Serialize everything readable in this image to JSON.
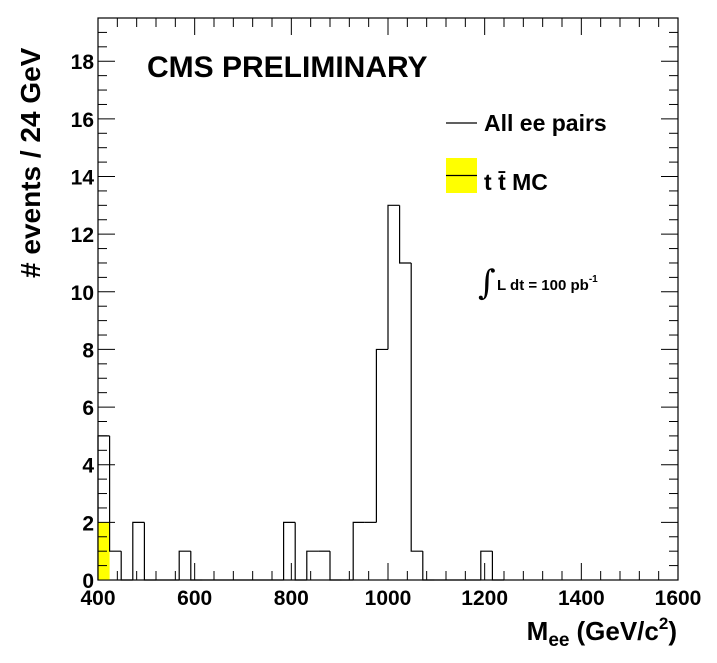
{
  "chart_data": {
    "type": "bar",
    "title": "CMS PRELIMINARY",
    "ylabel": "# events / 24 GeV",
    "xlabel_main": "M",
    "xlabel_sub": "ee",
    "xlabel_unit": "(GeV/c",
    "xlabel_unit_sup": "2",
    "xlabel_unit_close": ")",
    "xlim": [
      400,
      1600
    ],
    "ylim": [
      0,
      19.5
    ],
    "xticks": [
      400,
      600,
      800,
      1000,
      1200,
      1400,
      1600
    ],
    "yticks": [
      0,
      2,
      4,
      6,
      8,
      10,
      12,
      14,
      16,
      18
    ],
    "bin_width": 24,
    "series": [
      {
        "name": "All ee pairs",
        "style": "outline",
        "color": "#000000",
        "bins": [
          {
            "x": 400,
            "y": 5
          },
          {
            "x": 424,
            "y": 1
          },
          {
            "x": 448,
            "y": 0
          },
          {
            "x": 472,
            "y": 2
          },
          {
            "x": 496,
            "y": 0
          },
          {
            "x": 520,
            "y": 0
          },
          {
            "x": 544,
            "y": 0
          },
          {
            "x": 568,
            "y": 1
          },
          {
            "x": 592,
            "y": 0
          },
          {
            "x": 616,
            "y": 0
          },
          {
            "x": 640,
            "y": 0
          },
          {
            "x": 664,
            "y": 0
          },
          {
            "x": 688,
            "y": 0
          },
          {
            "x": 712,
            "y": 0
          },
          {
            "x": 736,
            "y": 0
          },
          {
            "x": 760,
            "y": 0
          },
          {
            "x": 784,
            "y": 2
          },
          {
            "x": 808,
            "y": 0
          },
          {
            "x": 832,
            "y": 1
          },
          {
            "x": 856,
            "y": 1
          },
          {
            "x": 880,
            "y": 0
          },
          {
            "x": 904,
            "y": 0
          },
          {
            "x": 928,
            "y": 2
          },
          {
            "x": 952,
            "y": 2
          },
          {
            "x": 976,
            "y": 8
          },
          {
            "x": 1000,
            "y": 13
          },
          {
            "x": 1024,
            "y": 11
          },
          {
            "x": 1048,
            "y": 1
          },
          {
            "x": 1072,
            "y": 0
          },
          {
            "x": 1096,
            "y": 0
          },
          {
            "x": 1120,
            "y": 0
          },
          {
            "x": 1144,
            "y": 0
          },
          {
            "x": 1168,
            "y": 0
          },
          {
            "x": 1192,
            "y": 1
          },
          {
            "x": 1216,
            "y": 0
          }
        ]
      },
      {
        "name": "t t̄ MC",
        "style": "filled",
        "color": "#ffff00",
        "bins": [
          {
            "x": 400,
            "y": 2
          }
        ]
      }
    ],
    "legend": {
      "position": "top-right",
      "entry1": "All ee pairs",
      "entry2_t": "t",
      "entry2_tbar": "t̄",
      "entry2_rest": "MC"
    },
    "annotation": {
      "integral": "∫",
      "text": "L dt = 100  pb",
      "sup": "-1"
    }
  }
}
